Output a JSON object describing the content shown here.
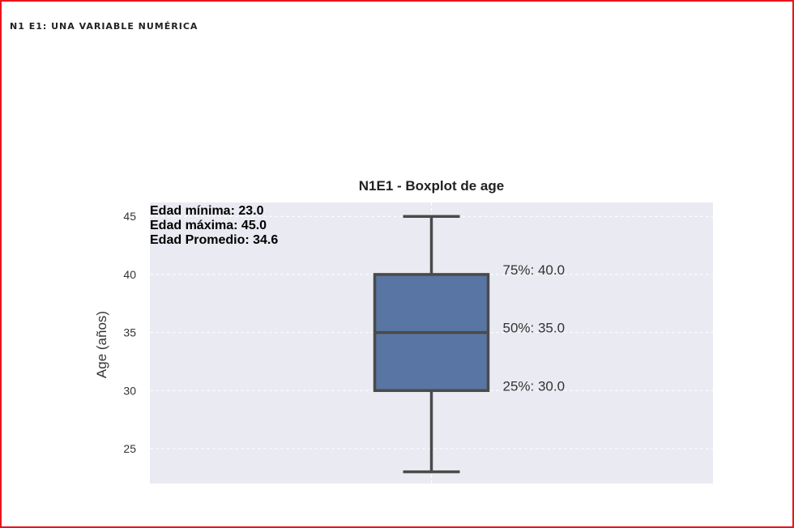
{
  "header": {
    "section_title": "N1 E1: UNA VARIABLE NUMÉRICA"
  },
  "colors": {
    "frame": "#e8141c",
    "plot_bg": "#eaeaf2",
    "box": "#5875a4",
    "line": "#4a4a4a"
  },
  "chart_data": {
    "type": "boxplot",
    "title": "N1E1 - Boxplot de age",
    "xlabel": "",
    "ylabel": "Age (años)",
    "ylim": [
      22,
      46.2
    ],
    "yticks": [
      25,
      30,
      35,
      40,
      45
    ],
    "grid": true,
    "box": {
      "min": 23.0,
      "q1": 30.0,
      "median": 35.0,
      "q3": 40.0,
      "max": 45.0
    },
    "annotations": [
      {
        "text": "75%: 40.0",
        "y": 40.0
      },
      {
        "text": "50%: 35.0",
        "y": 35.0
      },
      {
        "text": "25%: 30.0",
        "y": 30.0
      }
    ],
    "stats_text": [
      "Edad mínima: 23.0",
      "Edad máxima: 45.0",
      "Edad Promedio: 34.6"
    ]
  }
}
